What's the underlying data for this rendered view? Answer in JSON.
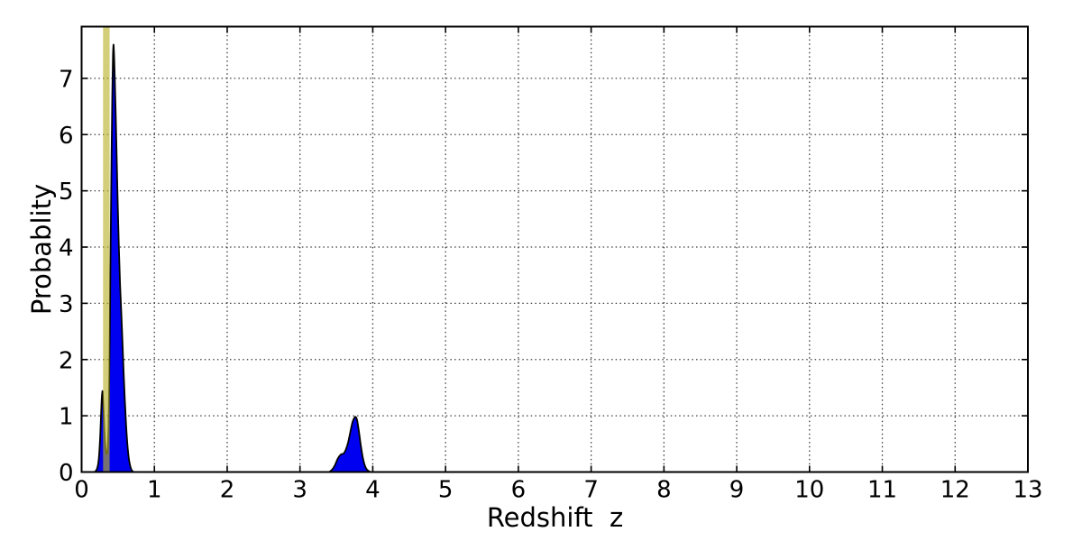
{
  "chart_data": {
    "type": "area",
    "title": "",
    "xlabel": "Redshift  z",
    "ylabel": "Probablity",
    "xlim": [
      0,
      13
    ],
    "ylim": [
      0,
      7.92
    ],
    "x_ticks": [
      0,
      1,
      2,
      3,
      4,
      5,
      6,
      7,
      8,
      9,
      10,
      11,
      12,
      13
    ],
    "y_ticks": [
      0,
      1,
      2,
      3,
      4,
      5,
      6,
      7
    ],
    "grid": {
      "style": "dotted",
      "color": "#3d3d3d",
      "x_lines": [
        1,
        2,
        3,
        4,
        5,
        6,
        7,
        8,
        9,
        10,
        11,
        12
      ],
      "y_lines": [
        1,
        2,
        3,
        4,
        5,
        6,
        7
      ]
    },
    "legend": "none",
    "series": [
      {
        "name": "pdf-low-z-peaks",
        "type": "filled-curve",
        "fill": "#0000f0",
        "outline": "#000000",
        "points": [
          [
            0.175,
            0.0
          ],
          [
            0.195,
            0.02
          ],
          [
            0.215,
            0.07
          ],
          [
            0.235,
            0.22
          ],
          [
            0.255,
            0.62
          ],
          [
            0.272,
            1.18
          ],
          [
            0.285,
            1.44
          ],
          [
            0.298,
            1.2
          ],
          [
            0.312,
            0.78
          ],
          [
            0.326,
            0.48
          ],
          [
            0.34,
            0.34
          ],
          [
            0.352,
            0.33
          ],
          [
            0.362,
            0.48
          ],
          [
            0.372,
            0.95
          ],
          [
            0.382,
            1.9
          ],
          [
            0.392,
            3.1
          ],
          [
            0.402,
            4.45
          ],
          [
            0.412,
            5.7
          ],
          [
            0.422,
            6.75
          ],
          [
            0.431,
            7.4
          ],
          [
            0.438,
            7.6
          ],
          [
            0.446,
            7.42
          ],
          [
            0.455,
            7.05
          ],
          [
            0.468,
            6.4
          ],
          [
            0.482,
            5.6
          ],
          [
            0.497,
            4.75
          ],
          [
            0.512,
            4.0
          ],
          [
            0.528,
            3.35
          ],
          [
            0.545,
            2.85
          ],
          [
            0.562,
            2.3
          ],
          [
            0.578,
            1.75
          ],
          [
            0.595,
            1.25
          ],
          [
            0.612,
            0.82
          ],
          [
            0.63,
            0.48
          ],
          [
            0.648,
            0.25
          ],
          [
            0.666,
            0.12
          ],
          [
            0.685,
            0.04
          ],
          [
            0.705,
            0.01
          ],
          [
            0.72,
            0.0
          ]
        ]
      },
      {
        "name": "pdf-high-z-bump",
        "type": "filled-curve",
        "fill": "#0000f0",
        "outline": "#000000",
        "points": [
          [
            3.4,
            0.0
          ],
          [
            3.44,
            0.04
          ],
          [
            3.48,
            0.12
          ],
          [
            3.52,
            0.24
          ],
          [
            3.56,
            0.31
          ],
          [
            3.6,
            0.33
          ],
          [
            3.63,
            0.4
          ],
          [
            3.66,
            0.52
          ],
          [
            3.69,
            0.7
          ],
          [
            3.72,
            0.88
          ],
          [
            3.745,
            0.96
          ],
          [
            3.765,
            0.98
          ],
          [
            3.785,
            0.92
          ],
          [
            3.81,
            0.72
          ],
          [
            3.835,
            0.48
          ],
          [
            3.86,
            0.28
          ],
          [
            3.885,
            0.14
          ],
          [
            3.91,
            0.06
          ],
          [
            3.94,
            0.02
          ],
          [
            3.97,
            0.0
          ]
        ]
      }
    ],
    "annotations": [
      {
        "name": "highlight-band",
        "type": "vspan",
        "x0": 0.295,
        "x1": 0.385,
        "color": "#b9b22d",
        "opacity": 0.64
      }
    ]
  },
  "axes": {
    "spine_color": "#000000",
    "tick_color": "#000000",
    "background": "#ffffff"
  }
}
